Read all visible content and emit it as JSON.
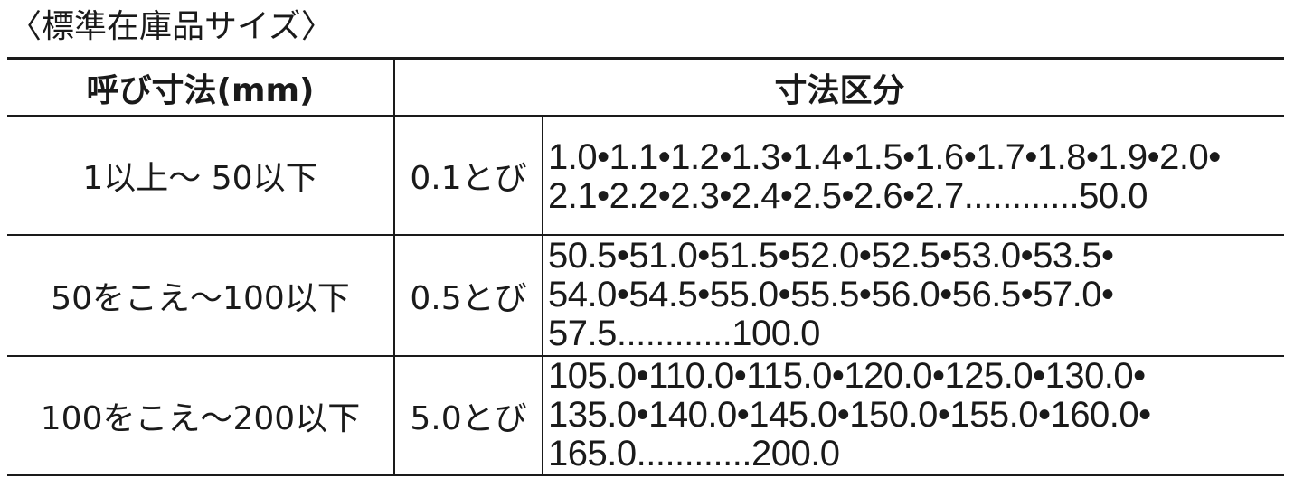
{
  "title": "〈標準在庫品サイズ〉",
  "table": {
    "headers": {
      "nominal_size": "呼び寸法(mm)",
      "size_division": "寸法区分"
    },
    "rows": [
      {
        "range": "1以上～ 50以下",
        "step": "0.1とび",
        "values": [
          "1.0•1.1•1.2•1.3•1.4•1.5•1.6•1.7•1.8•1.9•2.0•",
          "2.1•2.2•2.3•2.4•2.5•2.6•2.7............50.0"
        ]
      },
      {
        "range": "50をこえ～100以下",
        "step": "0.5とび",
        "values": [
          "50.5•51.0•51.5•52.0•52.5•53.0•53.5•",
          "54.0•54.5•55.0•55.5•56.0•56.5•57.0•",
          "57.5............100.0"
        ]
      },
      {
        "range": "100をこえ～200以下",
        "step": "5.0とび",
        "values": [
          "105.0•110.0•115.0•120.0•125.0•130.0•",
          "135.0•140.0•145.0•150.0•155.0•160.0•",
          "165.0............200.0"
        ]
      }
    ]
  }
}
